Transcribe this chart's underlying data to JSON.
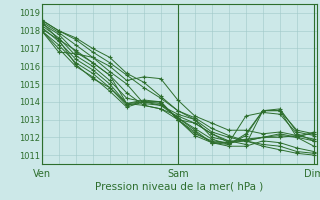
{
  "bg_color": "#cce8e8",
  "grid_color": "#a0c8c8",
  "line_color": "#2d6e2d",
  "marker_color": "#2d6e2d",
  "xlabel": "Pression niveau de la mer( hPa )",
  "xtick_labels": [
    "Ven",
    "Sam",
    "Dim"
  ],
  "xtick_positions": [
    0,
    48,
    96
  ],
  "ylim": [
    1010.5,
    1019.5
  ],
  "xlim": [
    0,
    97
  ],
  "yticks": [
    1011,
    1012,
    1013,
    1014,
    1015,
    1016,
    1017,
    1018,
    1019
  ],
  "series": [
    [
      0,
      1018.6,
      6,
      1018.0,
      12,
      1017.5,
      18,
      1016.8,
      24,
      1016.2,
      30,
      1015.5,
      36,
      1014.8,
      42,
      1014.2,
      48,
      1013.5,
      54,
      1013.1,
      60,
      1012.5,
      66,
      1012.1,
      72,
      1011.8,
      78,
      1011.5,
      84,
      1011.3,
      90,
      1011.1,
      96,
      1011.0
    ],
    [
      0,
      1018.5,
      6,
      1017.9,
      12,
      1017.2,
      18,
      1016.5,
      24,
      1015.7,
      30,
      1015.0,
      36,
      1013.9,
      42,
      1013.8,
      48,
      1013.3,
      54,
      1013.0,
      60,
      1012.0,
      66,
      1011.8,
      72,
      1011.6,
      78,
      1013.5,
      84,
      1013.5,
      90,
      1012.0,
      96,
      1011.5
    ],
    [
      0,
      1018.4,
      6,
      1017.8,
      12,
      1016.8,
      18,
      1016.2,
      24,
      1015.5,
      30,
      1014.5,
      36,
      1013.8,
      42,
      1013.6,
      48,
      1013.2,
      54,
      1012.8,
      60,
      1012.2,
      66,
      1011.7,
      72,
      1013.2,
      78,
      1013.4,
      84,
      1013.3,
      90,
      1012.2,
      96,
      1011.8
    ],
    [
      0,
      1018.3,
      6,
      1017.6,
      12,
      1016.6,
      18,
      1016.0,
      24,
      1015.2,
      30,
      1014.2,
      36,
      1014.0,
      42,
      1013.9,
      48,
      1013.1,
      54,
      1012.5,
      60,
      1011.9,
      66,
      1011.6,
      72,
      1012.2,
      78,
      1013.5,
      84,
      1013.6,
      90,
      1012.3,
      96,
      1012.1
    ],
    [
      0,
      1018.2,
      6,
      1017.4,
      12,
      1016.4,
      18,
      1015.8,
      24,
      1015.0,
      30,
      1013.9,
      36,
      1014.1,
      42,
      1014.0,
      48,
      1013.0,
      54,
      1012.3,
      60,
      1011.7,
      66,
      1011.6,
      72,
      1012.1,
      78,
      1013.5,
      84,
      1013.5,
      90,
      1012.4,
      96,
      1012.2
    ],
    [
      0,
      1018.0,
      6,
      1017.2,
      12,
      1016.2,
      18,
      1015.6,
      24,
      1014.8,
      30,
      1013.8,
      36,
      1014.0,
      42,
      1014.0,
      48,
      1013.0,
      54,
      1012.2,
      60,
      1011.8,
      66,
      1011.7,
      72,
      1011.9,
      78,
      1012.0,
      84,
      1012.2,
      90,
      1012.0,
      96,
      1012.3
    ],
    [
      0,
      1018.0,
      6,
      1017.0,
      12,
      1016.0,
      18,
      1015.4,
      24,
      1014.6,
      30,
      1013.7,
      36,
      1014.0,
      42,
      1014.0,
      48,
      1013.0,
      54,
      1012.1,
      60,
      1011.7,
      66,
      1011.7,
      72,
      1011.8,
      78,
      1012.0,
      84,
      1012.0,
      90,
      1012.1,
      96,
      1012.2
    ],
    [
      0,
      1018.0,
      6,
      1016.8,
      12,
      1016.7,
      18,
      1016.5,
      24,
      1016.0,
      30,
      1015.2,
      36,
      1015.4,
      42,
      1015.3,
      48,
      1014.1,
      54,
      1013.2,
      60,
      1012.8,
      66,
      1012.4,
      72,
      1012.4,
      78,
      1012.2,
      84,
      1012.3,
      90,
      1012.1,
      96,
      1011.9
    ],
    [
      0,
      1018.1,
      6,
      1017.5,
      12,
      1016.9,
      18,
      1016.2,
      24,
      1015.5,
      30,
      1013.9,
      36,
      1013.8,
      42,
      1013.6,
      48,
      1013.0,
      54,
      1012.8,
      60,
      1012.2,
      66,
      1011.8,
      72,
      1011.8,
      78,
      1012.0,
      84,
      1012.1,
      90,
      1012.0,
      96,
      1011.8
    ],
    [
      0,
      1018.6,
      6,
      1018.0,
      12,
      1017.6,
      18,
      1017.0,
      24,
      1016.5,
      30,
      1015.6,
      36,
      1015.1,
      42,
      1014.3,
      48,
      1013.5,
      54,
      1013.0,
      60,
      1012.3,
      66,
      1012.0,
      72,
      1011.8,
      78,
      1011.6,
      84,
      1011.5,
      90,
      1011.2,
      96,
      1011.1
    ],
    [
      0,
      1018.5,
      6,
      1017.5,
      12,
      1016.1,
      18,
      1015.3,
      24,
      1014.8,
      30,
      1013.9,
      36,
      1014.0,
      42,
      1013.8,
      48,
      1013.1,
      54,
      1012.4,
      60,
      1011.7,
      66,
      1011.5,
      72,
      1011.5,
      78,
      1011.8,
      84,
      1011.7,
      90,
      1011.4,
      96,
      1011.2
    ]
  ]
}
